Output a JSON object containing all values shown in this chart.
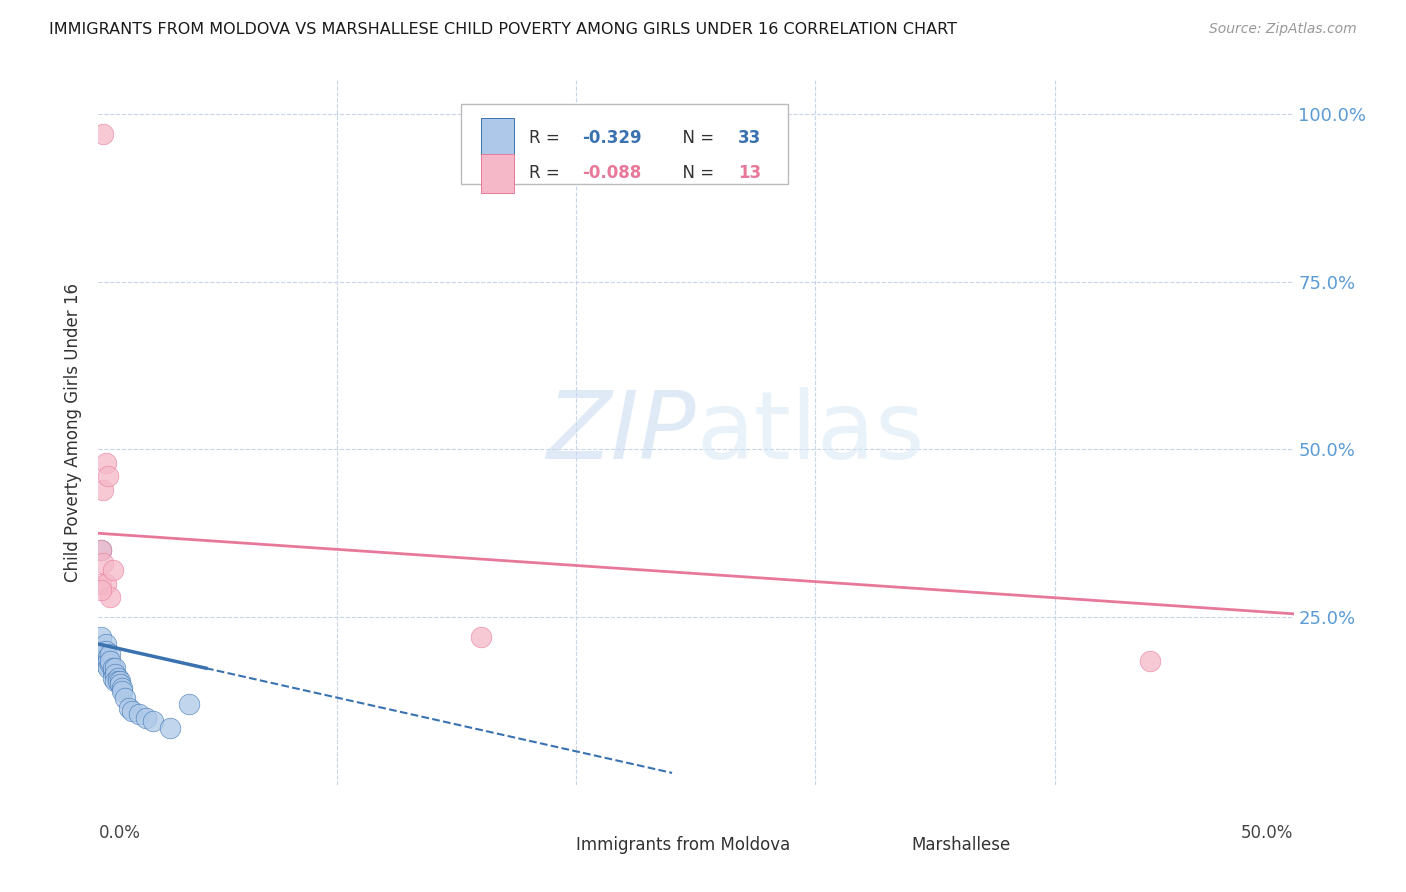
{
  "title": "IMMIGRANTS FROM MOLDOVA VS MARSHALLESE CHILD POVERTY AMONG GIRLS UNDER 16 CORRELATION CHART",
  "source": "Source: ZipAtlas.com",
  "ylabel": "Child Poverty Among Girls Under 16",
  "ylabel_right_ticks": [
    "100.0%",
    "75.0%",
    "50.0%",
    "25.0%"
  ],
  "ylabel_right_values": [
    1.0,
    0.75,
    0.5,
    0.25
  ],
  "xlim": [
    0.0,
    0.5
  ],
  "ylim": [
    0.0,
    1.05
  ],
  "r_moldova": -0.329,
  "n_moldova": 33,
  "r_marshallese": -0.088,
  "n_marshallese": 13,
  "color_moldova": "#adc8e8",
  "color_moldova_line": "#3a72b0",
  "color_marshallese": "#f5b8c8",
  "color_marshallese_line": "#e8789a",
  "moldova_x": [
    0.001,
    0.002,
    0.002,
    0.003,
    0.003,
    0.003,
    0.004,
    0.004,
    0.004,
    0.005,
    0.005,
    0.005,
    0.006,
    0.006,
    0.006,
    0.007,
    0.007,
    0.007,
    0.008,
    0.008,
    0.009,
    0.009,
    0.01,
    0.01,
    0.011,
    0.013,
    0.014,
    0.017,
    0.02,
    0.023,
    0.03,
    0.038,
    0.001
  ],
  "moldova_y": [
    0.22,
    0.2,
    0.19,
    0.21,
    0.2,
    0.18,
    0.19,
    0.185,
    0.175,
    0.18,
    0.195,
    0.185,
    0.17,
    0.175,
    0.16,
    0.175,
    0.165,
    0.155,
    0.16,
    0.155,
    0.155,
    0.15,
    0.145,
    0.14,
    0.13,
    0.115,
    0.11,
    0.105,
    0.1,
    0.095,
    0.085,
    0.12,
    0.35
  ],
  "marshallese_x": [
    0.001,
    0.001,
    0.002,
    0.002,
    0.003,
    0.003,
    0.004,
    0.005,
    0.006,
    0.002,
    0.16,
    0.44,
    0.001
  ],
  "marshallese_y": [
    0.3,
    0.35,
    0.33,
    0.44,
    0.48,
    0.3,
    0.46,
    0.28,
    0.32,
    0.97,
    0.22,
    0.185,
    0.29
  ],
  "mol_line_x0": 0.0,
  "mol_line_y0": 0.21,
  "mol_line_x1": 0.25,
  "mol_line_y1": 0.01,
  "mar_line_x0": 0.0,
  "mar_line_y0": 0.375,
  "mar_line_x1": 0.5,
  "mar_line_y1": 0.255
}
